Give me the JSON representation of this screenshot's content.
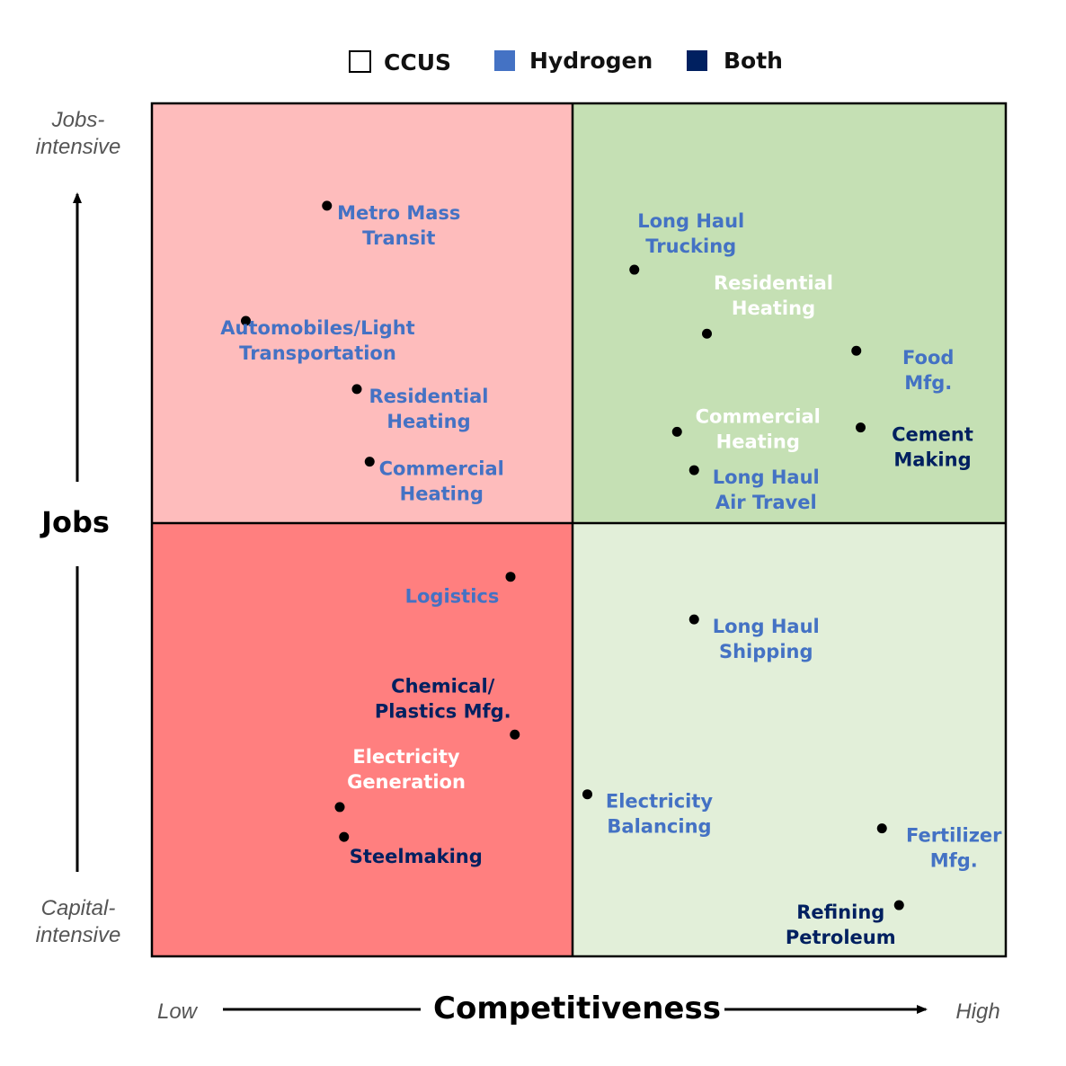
{
  "chart_data": {
    "type": "scatter",
    "xlabel": "Competitiveness",
    "ylabel": "Jobs",
    "x_low_label": "Low",
    "x_high_label": "High",
    "y_top_label": [
      "Jobs-",
      "intensive"
    ],
    "y_bottom_label": [
      "Capital-",
      "intensive"
    ],
    "xlim": [
      0,
      100
    ],
    "ylim": [
      0,
      100
    ],
    "grid": false,
    "legend_position": "top",
    "colors": {
      "q_top_left": "#FEBCBC",
      "q_top_right": "#C5E0B4",
      "q_bottom_left": "#FF7F7F",
      "q_bottom_right": "#E2EFD9",
      "ccus": "#FFFFFF",
      "hydrogen": "#4472C4",
      "both": "#002060"
    },
    "legend": [
      {
        "key": "ccus",
        "label": "CCUS"
      },
      {
        "key": "hydrogen",
        "label": "Hydrogen"
      },
      {
        "key": "both",
        "label": "Both"
      }
    ],
    "points": [
      {
        "lines": [
          "Metro Mass",
          "Transit"
        ],
        "x": 20.5,
        "y": 88,
        "tech": "hydrogen",
        "anchor": "below-right"
      },
      {
        "lines": [
          "Automobiles/Light",
          "Transportation"
        ],
        "x": 11,
        "y": 74.5,
        "tech": "hydrogen",
        "anchor": "below-right"
      },
      {
        "lines": [
          "Residential",
          "Heating"
        ],
        "x": 24,
        "y": 66.5,
        "tech": "hydrogen",
        "anchor": "below-right"
      },
      {
        "lines": [
          "Commercial",
          "Heating"
        ],
        "x": 25.5,
        "y": 58,
        "tech": "hydrogen",
        "anchor": "below-right"
      },
      {
        "lines": [
          "Long Haul",
          "Trucking"
        ],
        "x": 56.5,
        "y": 80.5,
        "tech": "hydrogen",
        "anchor": "above"
      },
      {
        "lines": [
          "Residential",
          "Heating"
        ],
        "x": 65,
        "y": 73,
        "tech": "ccus",
        "anchor": "above-right"
      },
      {
        "lines": [
          "Food",
          "Mfg."
        ],
        "x": 82.5,
        "y": 71,
        "tech": "hydrogen",
        "anchor": "below-right"
      },
      {
        "lines": [
          "Commercial",
          "Heating"
        ],
        "x": 61.5,
        "y": 61.5,
        "tech": "ccus",
        "anchor": "right"
      },
      {
        "lines": [
          "Cement",
          "Making"
        ],
        "x": 83,
        "y": 62,
        "tech": "both",
        "anchor": "below-right"
      },
      {
        "lines": [
          "Long Haul",
          "Air Travel"
        ],
        "x": 63.5,
        "y": 57,
        "tech": "hydrogen",
        "anchor": "below-right"
      },
      {
        "lines": [
          "Logistics"
        ],
        "x": 42,
        "y": 44.5,
        "tech": "hydrogen",
        "anchor": "below-left"
      },
      {
        "lines": [
          "Long Haul",
          "Shipping"
        ],
        "x": 63.5,
        "y": 39.5,
        "tech": "hydrogen",
        "anchor": "below-right"
      },
      {
        "lines": [
          "Chemical/",
          "Plastics Mfg."
        ],
        "x": 42.5,
        "y": 26,
        "tech": "both",
        "anchor": "above-left"
      },
      {
        "lines": [
          "Electricity",
          "Generation"
        ],
        "x": 22,
        "y": 17.5,
        "tech": "ccus",
        "anchor": "above-right"
      },
      {
        "lines": [
          "Steelmaking"
        ],
        "x": 22.5,
        "y": 14,
        "tech": "both",
        "anchor": "below-right"
      },
      {
        "lines": [
          "Electricity",
          "Balancing"
        ],
        "x": 51,
        "y": 19,
        "tech": "hydrogen",
        "anchor": "below-right"
      },
      {
        "lines": [
          "Fertilizer",
          "Mfg."
        ],
        "x": 85.5,
        "y": 15,
        "tech": "hydrogen",
        "anchor": "below-right"
      },
      {
        "lines": [
          "Refining",
          "Petroleum"
        ],
        "x": 87.5,
        "y": 6,
        "tech": "both",
        "anchor": "below-left"
      }
    ]
  }
}
